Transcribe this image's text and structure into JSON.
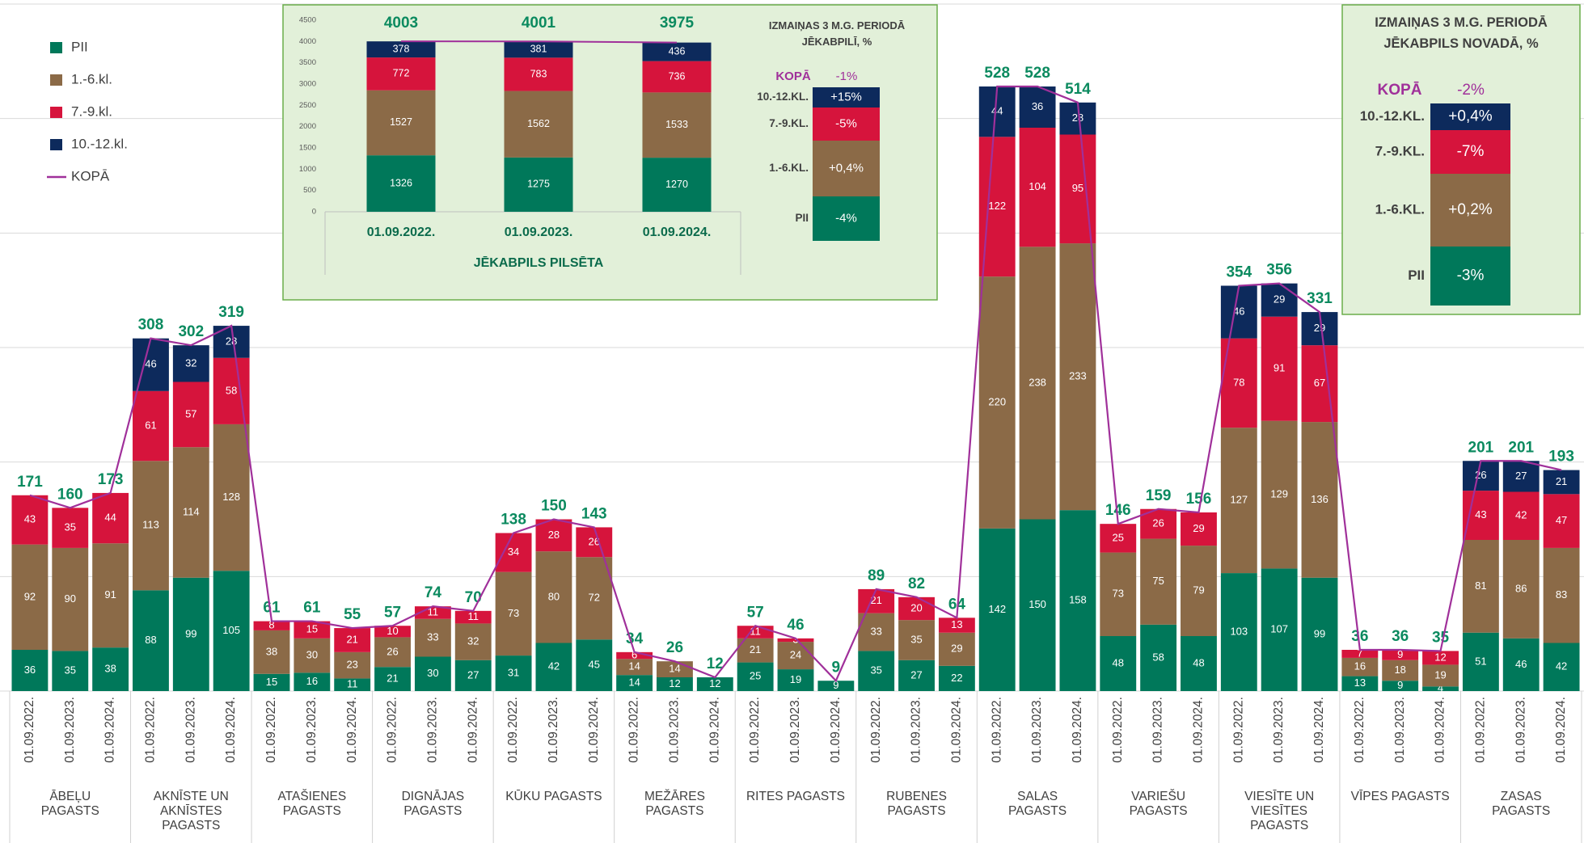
{
  "chart_data": [
    {
      "type": "grouped-stacked-bar",
      "groups": [
        "ĀBEĻU PAGASTS",
        "AKNĪSTE UN AKNĪSTES PAGASTS",
        "ATAŠIENES PAGASTS",
        "DIGNĀJAS PAGASTS",
        "KŪKU PAGASTS",
        "MEŽĀRES PAGASTS",
        "RITES PAGASTS",
        "RUBENES PAGASTS",
        "SALAS PAGASTS",
        "VARIEŠU PAGASTS",
        "VIESĪTE UN VIESĪTES PAGASTS",
        "VĪPES PAGASTS",
        "ZASAS PAGASTS"
      ],
      "categories": [
        "01.09.2022.",
        "01.09.2023.",
        "01.09.2024."
      ],
      "series": [
        {
          "name": "PII",
          "color": "#00785a",
          "values": [
            [
              36,
              35,
              38
            ],
            [
              88,
              99,
              105
            ],
            [
              15,
              16,
              11
            ],
            [
              21,
              30,
              27
            ],
            [
              31,
              42,
              45
            ],
            [
              14,
              12,
              12
            ],
            [
              25,
              19,
              9
            ],
            [
              35,
              27,
              22
            ],
            [
              142,
              150,
              158
            ],
            [
              48,
              58,
              48
            ],
            [
              103,
              107,
              99
            ],
            [
              13,
              9,
              4
            ],
            [
              51,
              46,
              42
            ]
          ]
        },
        {
          "name": "1.-6.kl.",
          "color": "#8b6a47",
          "values": [
            [
              92,
              90,
              91
            ],
            [
              113,
              114,
              128
            ],
            [
              38,
              30,
              23
            ],
            [
              26,
              33,
              32
            ],
            [
              73,
              80,
              72
            ],
            [
              14,
              14,
              0
            ],
            [
              21,
              24,
              0
            ],
            [
              33,
              35,
              29
            ],
            [
              220,
              238,
              233
            ],
            [
              73,
              75,
              79
            ],
            [
              127,
              129,
              136
            ],
            [
              16,
              18,
              19
            ],
            [
              81,
              86,
              83
            ]
          ]
        },
        {
          "name": "7.-9.kl.",
          "color": "#d6143c",
          "values": [
            [
              43,
              35,
              44
            ],
            [
              61,
              57,
              58
            ],
            [
              8,
              15,
              21
            ],
            [
              10,
              11,
              11
            ],
            [
              34,
              28,
              26
            ],
            [
              6,
              0,
              0
            ],
            [
              11,
              3,
              0
            ],
            [
              21,
              20,
              13
            ],
            [
              122,
              104,
              95
            ],
            [
              25,
              26,
              29
            ],
            [
              78,
              91,
              67
            ],
            [
              7,
              9,
              12
            ],
            [
              43,
              42,
              47
            ]
          ]
        },
        {
          "name": "10.-12.kl.",
          "color": "#0d2a5c",
          "values": [
            [
              0,
              0,
              0
            ],
            [
              46,
              32,
              28
            ],
            [
              0,
              0,
              0
            ],
            [
              0,
              0,
              0
            ],
            [
              0,
              0,
              0
            ],
            [
              0,
              0,
              0
            ],
            [
              0,
              0,
              0
            ],
            [
              0,
              0,
              0
            ],
            [
              44,
              36,
              28
            ],
            [
              0,
              0,
              0
            ],
            [
              46,
              29,
              29
            ],
            [
              0,
              0,
              0
            ],
            [
              26,
              27,
              21
            ]
          ]
        },
        {
          "name": "KOPĀ",
          "color": "#a0309a",
          "type": "line",
          "values": [
            [
              171,
              160,
              173
            ],
            [
              308,
              302,
              319
            ],
            [
              61,
              61,
              55
            ],
            [
              57,
              74,
              70
            ],
            [
              138,
              150,
              143
            ],
            [
              34,
              26,
              12
            ],
            [
              57,
              46,
              9
            ],
            [
              89,
              82,
              64
            ],
            [
              528,
              528,
              514
            ],
            [
              146,
              159,
              156
            ],
            [
              354,
              356,
              331
            ],
            [
              36,
              36,
              35
            ],
            [
              201,
              201,
              193
            ]
          ]
        }
      ],
      "ylim": [
        0,
        600
      ],
      "yticks": [
        0,
        100,
        200,
        300,
        400,
        500,
        600
      ],
      "grid": true,
      "legend": "top-left",
      "total_color": "#0b8a5f"
    },
    {
      "type": "stacked-bar",
      "xlabel": "JĒKABPILS PILSĒTA",
      "categories": [
        "01.09.2022.",
        "01.09.2023.",
        "01.09.2024."
      ],
      "series": [
        {
          "color": "#00785a",
          "values": [
            1326,
            1275,
            1270
          ]
        },
        {
          "color": "#8b6a47",
          "values": [
            1527,
            1562,
            1533
          ]
        },
        {
          "color": "#d6143c",
          "values": [
            772,
            783,
            736
          ]
        },
        {
          "color": "#0d2a5c",
          "values": [
            378,
            381,
            436
          ]
        },
        {
          "color": "#a0309a",
          "type": "line",
          "values": [
            4003,
            4001,
            3975
          ]
        }
      ],
      "ylim": [
        0,
        4500
      ],
      "yticks": [
        0,
        500,
        1000,
        1500,
        2000,
        2500,
        3000,
        3500,
        4000,
        4500
      ],
      "total_color": "#0b8a5f"
    },
    {
      "type": "change-column",
      "title": "IZMAIŅAS 3 M.G. PERIODĀ JĒKABPILĪ, %",
      "total_name": "KOPĀ",
      "total": -1,
      "total_label": "-1%",
      "categories": [
        "10.-12.KL.",
        "7.-9.KL.",
        "1.-6.KL.",
        "PII"
      ],
      "values": [
        15,
        -5,
        0.4,
        -4
      ],
      "value_labels": [
        "+15%",
        "-5%",
        "+0,4%",
        "-4%"
      ],
      "colors": [
        "#0d2a5c",
        "#d6143c",
        "#8b6a47",
        "#00785a"
      ]
    },
    {
      "type": "change-column",
      "title": "IZMAIŅAS 3 M.G. PERIODĀ JĒKABPILS NOVADĀ, %",
      "total_name": "KOPĀ",
      "total": -2,
      "total_label": "-2%",
      "categories": [
        "10.-12.KL.",
        "7.-9.KL.",
        "1.-6.KL.",
        "PII"
      ],
      "values": [
        0.4,
        -7,
        0.2,
        -3
      ],
      "value_labels": [
        "+0,4%",
        "-7%",
        "+0,2%",
        "-3%"
      ],
      "colors": [
        "#0d2a5c",
        "#d6143c",
        "#8b6a47",
        "#00785a"
      ]
    }
  ]
}
